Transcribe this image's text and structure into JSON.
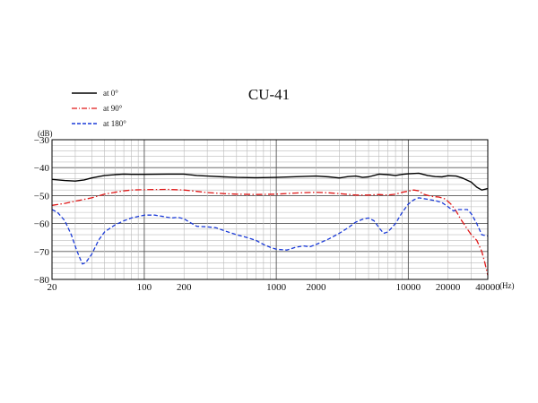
{
  "chart_data": {
    "type": "line",
    "title": "CU-41",
    "x_scale": "log",
    "y_scale": "linear",
    "xlim": [
      20,
      40000
    ],
    "ylim": [
      -80,
      -30
    ],
    "x_unit": "(Hz)",
    "y_unit": "(dB)",
    "x_ticks": [
      20,
      100,
      200,
      1000,
      2000,
      10000,
      20000,
      40000
    ],
    "x_tick_labels": [
      "20",
      "100",
      "200",
      "1000",
      "2000",
      "10000",
      "20000",
      "40000"
    ],
    "y_ticks": [
      -80,
      -70,
      -60,
      -50,
      -40,
      -30
    ],
    "y_tick_labels": [
      "−80",
      "−70",
      "−60",
      "−50",
      "−40",
      "−30"
    ],
    "grid": true,
    "legend_position": "top-left",
    "series": [
      {
        "name": "at 0°",
        "color": "#000000",
        "style": "solid",
        "points": [
          [
            20,
            -44.2
          ],
          [
            25,
            -44.6
          ],
          [
            30,
            -44.8
          ],
          [
            35,
            -44.4
          ],
          [
            40,
            -43.7
          ],
          [
            50,
            -42.8
          ],
          [
            60,
            -42.5
          ],
          [
            70,
            -42.3
          ],
          [
            80,
            -42.4
          ],
          [
            100,
            -42.4
          ],
          [
            150,
            -42.3
          ],
          [
            200,
            -42.3
          ],
          [
            250,
            -42.8
          ],
          [
            300,
            -43.0
          ],
          [
            400,
            -43.3
          ],
          [
            500,
            -43.5
          ],
          [
            700,
            -43.6
          ],
          [
            1000,
            -43.5
          ],
          [
            1500,
            -43.2
          ],
          [
            2000,
            -43.0
          ],
          [
            2500,
            -43.3
          ],
          [
            3000,
            -43.7
          ],
          [
            3500,
            -43.2
          ],
          [
            4000,
            -43.0
          ],
          [
            4500,
            -43.5
          ],
          [
            5000,
            -43.3
          ],
          [
            6000,
            -42.3
          ],
          [
            7000,
            -42.5
          ],
          [
            8000,
            -42.8
          ],
          [
            9000,
            -42.4
          ],
          [
            10000,
            -42.2
          ],
          [
            12000,
            -42.0
          ],
          [
            14000,
            -42.8
          ],
          [
            16000,
            -43.2
          ],
          [
            18000,
            -43.3
          ],
          [
            20000,
            -42.9
          ],
          [
            23000,
            -43.0
          ],
          [
            26000,
            -43.8
          ],
          [
            30000,
            -45.2
          ],
          [
            33000,
            -47.0
          ],
          [
            36000,
            -48.0
          ],
          [
            40000,
            -47.5
          ]
        ]
      },
      {
        "name": "at 90°",
        "color": "#e01818",
        "style": "dash-dot",
        "points": [
          [
            20,
            -53.5
          ],
          [
            25,
            -52.8
          ],
          [
            30,
            -52.0
          ],
          [
            40,
            -50.8
          ],
          [
            50,
            -49.5
          ],
          [
            60,
            -48.8
          ],
          [
            70,
            -48.3
          ],
          [
            80,
            -48.0
          ],
          [
            100,
            -47.9
          ],
          [
            150,
            -47.8
          ],
          [
            200,
            -48.0
          ],
          [
            250,
            -48.5
          ],
          [
            300,
            -48.9
          ],
          [
            400,
            -49.3
          ],
          [
            500,
            -49.5
          ],
          [
            700,
            -49.6
          ],
          [
            1000,
            -49.5
          ],
          [
            1500,
            -49.0
          ],
          [
            2000,
            -48.8
          ],
          [
            2500,
            -49.0
          ],
          [
            3000,
            -49.3
          ],
          [
            4000,
            -49.8
          ],
          [
            5000,
            -49.8
          ],
          [
            6000,
            -49.6
          ],
          [
            7000,
            -49.8
          ],
          [
            8000,
            -49.5
          ],
          [
            9000,
            -48.8
          ],
          [
            10000,
            -48.4
          ],
          [
            11000,
            -48.0
          ],
          [
            12000,
            -48.3
          ],
          [
            13000,
            -49.5
          ],
          [
            15000,
            -50.3
          ],
          [
            17000,
            -50.5
          ],
          [
            19000,
            -51.2
          ],
          [
            21000,
            -53.0
          ],
          [
            23000,
            -55.5
          ],
          [
            25000,
            -58.5
          ],
          [
            28000,
            -62.0
          ],
          [
            30000,
            -64.0
          ],
          [
            33000,
            -66.0
          ],
          [
            36000,
            -70.0
          ],
          [
            38000,
            -74.0
          ],
          [
            40000,
            -78.5
          ]
        ]
      },
      {
        "name": "at 180°",
        "color": "#1a3ad8",
        "style": "dashed",
        "points": [
          [
            20,
            -55.0
          ],
          [
            22,
            -56.0
          ],
          [
            25,
            -59.0
          ],
          [
            28,
            -64.0
          ],
          [
            31,
            -70.0
          ],
          [
            34,
            -74.5
          ],
          [
            36,
            -74.0
          ],
          [
            40,
            -71.0
          ],
          [
            45,
            -66.0
          ],
          [
            50,
            -63.0
          ],
          [
            60,
            -60.5
          ],
          [
            70,
            -59.0
          ],
          [
            80,
            -58.0
          ],
          [
            100,
            -57.0
          ],
          [
            120,
            -57.0
          ],
          [
            140,
            -57.5
          ],
          [
            160,
            -58.0
          ],
          [
            180,
            -57.8
          ],
          [
            200,
            -58.3
          ],
          [
            220,
            -59.5
          ],
          [
            250,
            -61.0
          ],
          [
            300,
            -61.2
          ],
          [
            350,
            -61.5
          ],
          [
            400,
            -62.5
          ],
          [
            500,
            -64.0
          ],
          [
            600,
            -65.0
          ],
          [
            700,
            -66.0
          ],
          [
            800,
            -67.5
          ],
          [
            900,
            -68.5
          ],
          [
            1000,
            -69.2
          ],
          [
            1200,
            -69.5
          ],
          [
            1400,
            -68.5
          ],
          [
            1600,
            -68.0
          ],
          [
            1800,
            -68.3
          ],
          [
            2000,
            -67.5
          ],
          [
            2500,
            -65.5
          ],
          [
            3000,
            -63.5
          ],
          [
            3500,
            -61.5
          ],
          [
            4000,
            -59.5
          ],
          [
            4500,
            -58.5
          ],
          [
            5000,
            -58.0
          ],
          [
            5500,
            -59.0
          ],
          [
            6000,
            -61.5
          ],
          [
            6500,
            -63.5
          ],
          [
            7000,
            -63.0
          ],
          [
            8000,
            -60.0
          ],
          [
            9000,
            -56.0
          ],
          [
            10000,
            -53.0
          ],
          [
            11000,
            -51.5
          ],
          [
            12000,
            -50.8
          ],
          [
            14000,
            -51.3
          ],
          [
            16000,
            -51.8
          ],
          [
            18000,
            -52.5
          ],
          [
            20000,
            -54.0
          ],
          [
            22000,
            -55.5
          ],
          [
            24000,
            -55.0
          ],
          [
            26000,
            -55.0
          ],
          [
            28000,
            -55.0
          ],
          [
            30000,
            -56.5
          ],
          [
            33000,
            -60.0
          ],
          [
            36000,
            -64.0
          ],
          [
            40000,
            -64.5
          ]
        ]
      }
    ]
  }
}
